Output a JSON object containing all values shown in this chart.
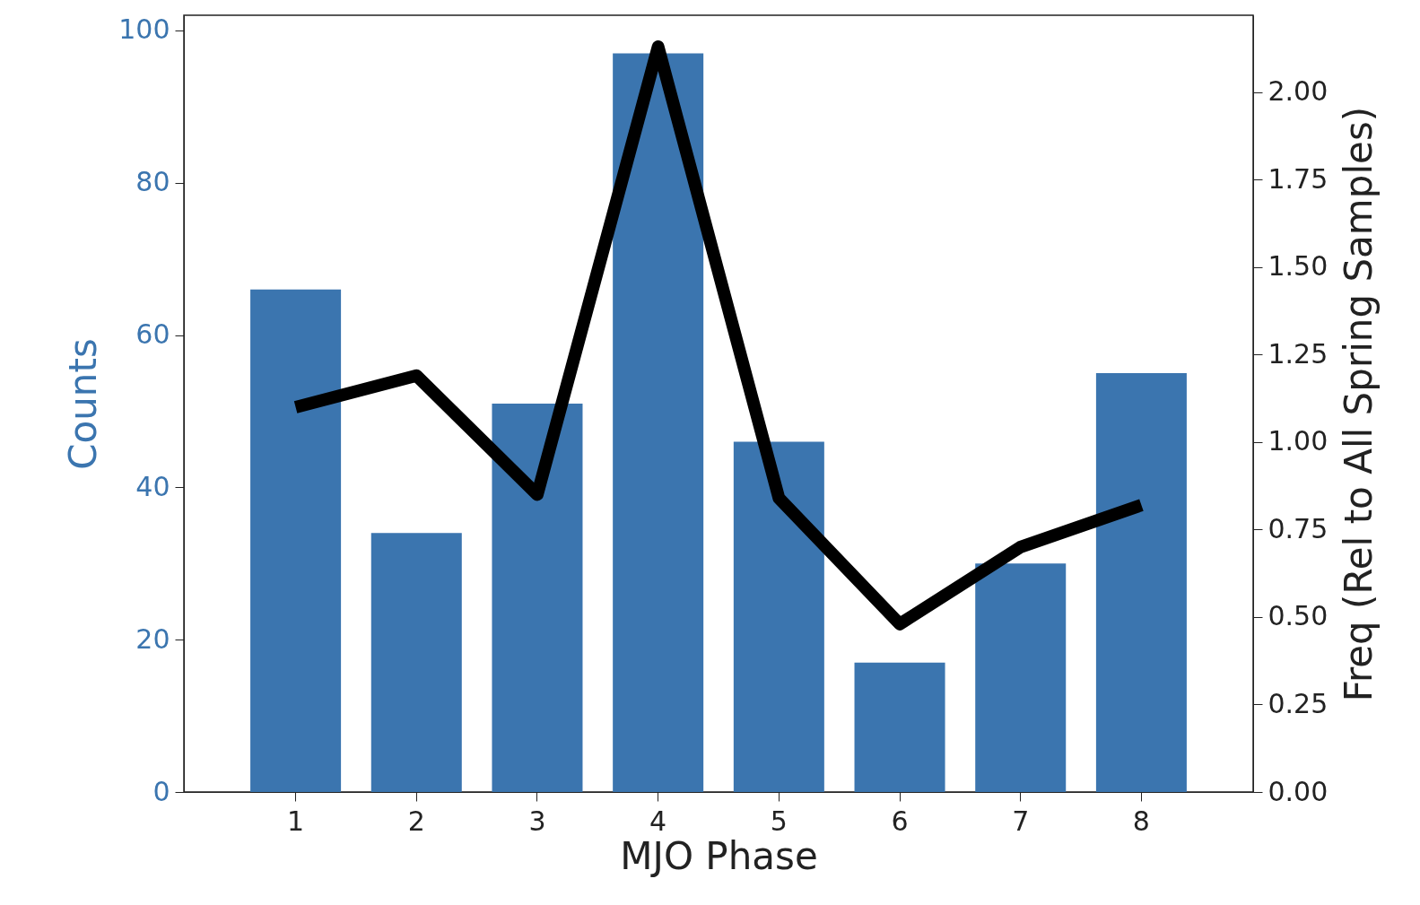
{
  "chart_data": {
    "type": "bar",
    "xlabel": "MJO Phase",
    "ylabel": "Counts",
    "y2label": "Freq (Rel to All Spring Samples)",
    "categories": [
      "1",
      "2",
      "3",
      "4",
      "5",
      "6",
      "7",
      "8"
    ],
    "series": [
      {
        "color": "#3b75af",
        "values": [
          66,
          34,
          51,
          97,
          46,
          17,
          30,
          55
        ]
      },
      {
        "type": "line",
        "axis": "y2",
        "color": "#000000",
        "values": [
          1.1,
          1.19,
          0.85,
          2.13,
          0.84,
          0.48,
          0.7,
          0.82
        ]
      }
    ],
    "ylim": [
      0,
      102
    ],
    "yticks": [
      0,
      20,
      40,
      60,
      80,
      100
    ],
    "y2lim": [
      0,
      2.22
    ],
    "y2ticks": [
      {
        "value": 0,
        "label": "0.00"
      },
      {
        "value": 0.25,
        "label": "0.25"
      },
      {
        "value": 0.5,
        "label": "0.50"
      },
      {
        "value": 0.75,
        "label": "0.75"
      },
      {
        "value": 1,
        "label": "1.00"
      },
      {
        "value": 1.25,
        "label": "1.25"
      },
      {
        "value": 1.5,
        "label": "1.50"
      },
      {
        "value": 1.75,
        "label": "1.75"
      },
      {
        "value": 2,
        "label": "2.00"
      }
    ],
    "grid": false
  }
}
